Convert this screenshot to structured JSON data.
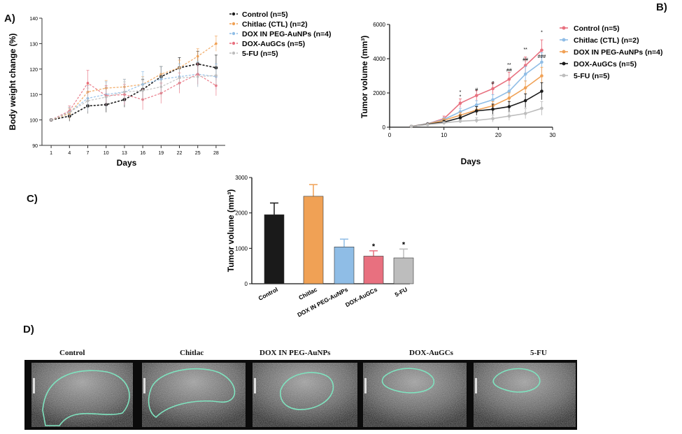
{
  "panels": {
    "a": "A)",
    "b": "B)",
    "c": "C)",
    "d": "D)"
  },
  "colors": {
    "control": "#1a1a1a",
    "chitlac": "#f0a155",
    "dox_peg": "#8fbde6",
    "dox_augc": "#e8707f",
    "fu5": "#bdbdbd",
    "tumor_line": "#7fe3bf"
  },
  "chart_data": [
    {
      "id": "A",
      "type": "line",
      "title": "",
      "xlabel": "Days",
      "ylabel": "Body weight change (%)",
      "x": [
        1,
        4,
        7,
        10,
        13,
        16,
        19,
        22,
        25,
        28
      ],
      "xticks": [
        "1",
        "4",
        "7",
        "10",
        "13",
        "16",
        "19",
        "22",
        "25",
        "28"
      ],
      "ylim": [
        90,
        140
      ],
      "yticks": [
        "90",
        "100",
        "110",
        "120",
        "130",
        "140"
      ],
      "legend_position": "right",
      "series": [
        {
          "key": "control",
          "name": "Control (n=5)",
          "values": [
            100,
            101.5,
            105.5,
            106,
            108,
            112,
            117,
            120.5,
            122,
            120.5
          ],
          "err": [
            0,
            2,
            3,
            3,
            3,
            4,
            4,
            4,
            5,
            5
          ]
        },
        {
          "key": "chitlac",
          "name": "Chitlac (CTL) (n=2)",
          "values": [
            100,
            102.5,
            111,
            112.5,
            113,
            114,
            118,
            120.5,
            125,
            130
          ],
          "err": [
            0,
            2,
            3,
            3,
            3,
            3,
            3,
            3,
            3,
            3
          ]
        },
        {
          "key": "dox_peg",
          "name": "DOX IN PEG-AuNPs (n=4)",
          "values": [
            100,
            103,
            108.5,
            110,
            111,
            114,
            116,
            117,
            118,
            117
          ],
          "err": [
            0,
            2,
            5,
            5,
            5,
            5,
            5,
            5,
            5,
            5
          ]
        },
        {
          "key": "dox_augc",
          "name": "DOX-AuGCs (n=5)",
          "values": [
            100,
            103.5,
            114.5,
            109.5,
            110,
            108,
            110.5,
            114.5,
            118,
            113.5
          ],
          "err": [
            0,
            2,
            5,
            4,
            4,
            4,
            4,
            4,
            4,
            4
          ]
        },
        {
          "key": "fu5",
          "name": "5-FU (n=5)",
          "values": [
            100,
            103,
            107.5,
            109,
            111,
            111.5,
            113,
            116.5,
            117,
            117.5
          ],
          "err": [
            0,
            2,
            5,
            4,
            4,
            4,
            4,
            4,
            4,
            4
          ]
        }
      ]
    },
    {
      "id": "B",
      "type": "line",
      "title": "",
      "xlabel": "Days",
      "ylabel": "Tumor volume (mm³)",
      "x": [
        4,
        7,
        10,
        13,
        16,
        19,
        22,
        25,
        28
      ],
      "xticks": [
        "0",
        "10",
        "20",
        "30"
      ],
      "xlim": [
        0,
        30
      ],
      "ylim": [
        0,
        6000
      ],
      "yticks": [
        "0",
        "2000",
        "4000",
        "6000"
      ],
      "legend_position": "top-right",
      "series": [
        {
          "key": "dox_augc",
          "name": "Control (n=5)",
          "values": [
            50,
            200,
            500,
            1400,
            1850,
            2250,
            2800,
            3600,
            4500
          ],
          "err": [
            0,
            50,
            150,
            250,
            300,
            350,
            400,
            500,
            600
          ]
        },
        {
          "key": "dox_peg",
          "name": "Chitlac (CTL) (n=2)",
          "values": [
            50,
            200,
            450,
            900,
            1300,
            1600,
            2100,
            3100,
            3800
          ],
          "err": [
            0,
            50,
            100,
            200,
            250,
            300,
            350,
            450,
            550
          ]
        },
        {
          "key": "chitlac",
          "name": "DOX IN PEG-AuNPs (n=4)",
          "values": [
            50,
            180,
            400,
            700,
            1000,
            1250,
            1700,
            2300,
            3000
          ],
          "err": [
            0,
            50,
            100,
            150,
            200,
            250,
            300,
            400,
            500
          ]
        },
        {
          "key": "control",
          "name": "DOX-AuGCs (n=5)",
          "values": [
            50,
            170,
            300,
            550,
            950,
            1050,
            1200,
            1550,
            2100
          ],
          "err": [
            0,
            50,
            100,
            150,
            250,
            300,
            300,
            400,
            500
          ]
        },
        {
          "key": "fu5",
          "name": "5-FU (n=5)",
          "values": [
            50,
            150,
            250,
            350,
            400,
            500,
            650,
            800,
            1100
          ],
          "err": [
            0,
            50,
            80,
            100,
            150,
            200,
            250,
            300,
            400
          ]
        }
      ],
      "annotations": [
        {
          "x": 13,
          "y": 1700,
          "text": "*"
        },
        {
          "x": 13,
          "y": 1950,
          "text": "*"
        },
        {
          "x": 16,
          "y": 2100,
          "text": "#"
        },
        {
          "x": 19,
          "y": 2500,
          "text": "#"
        },
        {
          "x": 22,
          "y": 3250,
          "text": "##"
        },
        {
          "x": 22,
          "y": 3550,
          "text": "**"
        },
        {
          "x": 25,
          "y": 3850,
          "text": "##"
        },
        {
          "x": 25,
          "y": 4450,
          "text": "**"
        },
        {
          "x": 28,
          "y": 4050,
          "text": "###"
        },
        {
          "x": 28,
          "y": 5450,
          "text": "*"
        }
      ]
    },
    {
      "id": "C",
      "type": "bar",
      "title": "",
      "xlabel": "",
      "ylabel": "Tumor volume (mm³)",
      "categories": [
        "Control",
        "Chitlac",
        "DOX IN PEG-AuNPs",
        "DOX-AuGCs",
        "5-FU"
      ],
      "values": [
        1950,
        2470,
        1040,
        780,
        730
      ],
      "err": [
        330,
        330,
        220,
        150,
        250
      ],
      "keys": [
        "control",
        "chitlac",
        "dox_peg",
        "dox_augc",
        "fu5"
      ],
      "annotations": [
        "",
        "",
        "",
        "*",
        "*"
      ],
      "ylim": [
        0,
        3000
      ],
      "yticks": [
        "0",
        "1000",
        "2000",
        "3000"
      ]
    }
  ],
  "ultrasound": {
    "titles": [
      "Control",
      "Chitlac",
      "DOX IN PEG-AuNPs",
      "DOX-AuGCs",
      "5-FU"
    ]
  }
}
